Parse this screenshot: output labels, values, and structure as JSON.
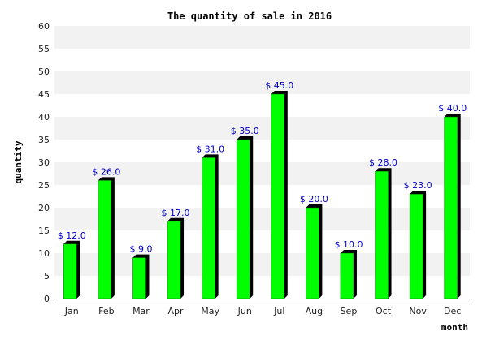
{
  "chart_data": {
    "type": "bar",
    "title": "The quantity of sale in 2016",
    "xlabel": "month",
    "ylabel": "quantity",
    "categories": [
      "Jan",
      "Feb",
      "Mar",
      "Apr",
      "May",
      "Jun",
      "Jul",
      "Aug",
      "Sep",
      "Oct",
      "Nov",
      "Dec"
    ],
    "values": [
      12,
      26,
      9,
      17,
      31,
      35,
      45,
      20,
      10,
      28,
      23,
      40
    ],
    "data_labels": [
      "$ 12.0",
      "$ 26.0",
      "$ 9.0",
      "$ 17.0",
      "$ 31.0",
      "$ 35.0",
      "$ 45.0",
      "$ 20.0",
      "$ 10.0",
      "$ 28.0",
      "$ 23.0",
      "$ 40.0"
    ],
    "ylim": [
      0,
      60
    ],
    "yticks": [
      0,
      5,
      10,
      15,
      20,
      25,
      30,
      35,
      40,
      45,
      50,
      55,
      60
    ],
    "grid": true,
    "legend": "none",
    "colors": {
      "bar": "#00ff00",
      "bar_shadow": "#000000",
      "band": "#f2f2f2",
      "data_label": "#0000cc"
    }
  }
}
